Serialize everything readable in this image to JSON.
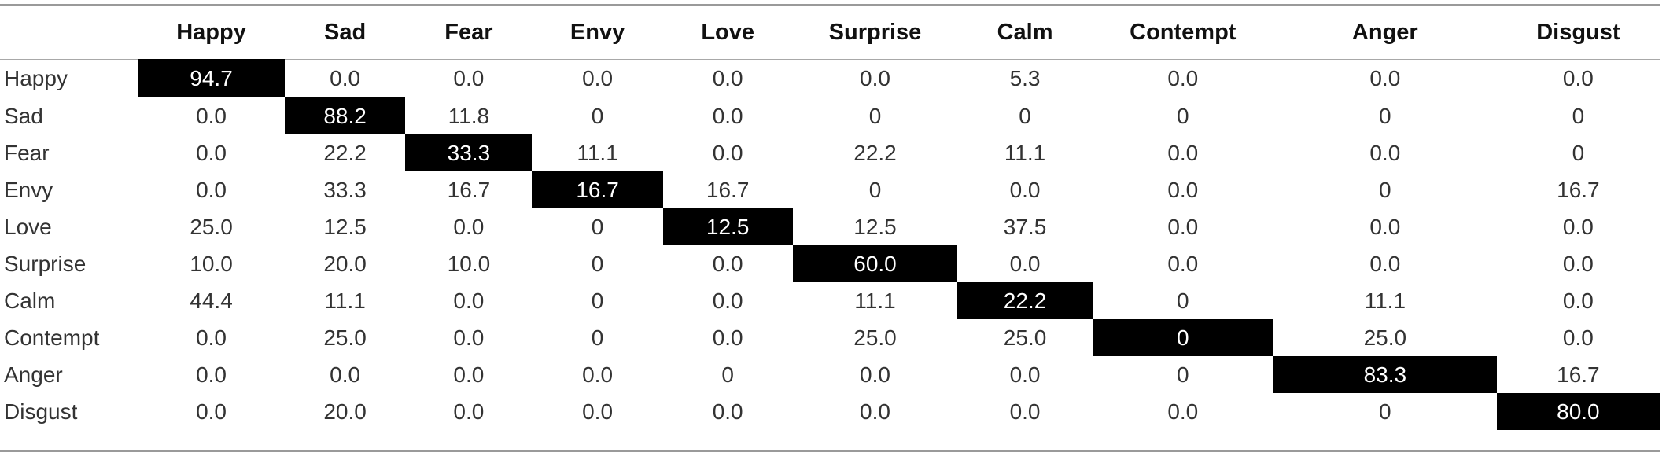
{
  "chart_data": {
    "type": "table",
    "title": "",
    "columns": [
      "Happy",
      "Sad",
      "Fear",
      "Envy",
      "Love",
      "Surprise",
      "Calm",
      "Contempt",
      "Anger",
      "Disgust"
    ],
    "rows": [
      {
        "label": "Happy",
        "values": [
          "94.7",
          "0.0",
          "0.0",
          "0.0",
          "0.0",
          "0.0",
          "5.3",
          "0.0",
          "0.0",
          "0.0"
        ]
      },
      {
        "label": "Sad",
        "values": [
          "0.0",
          "88.2",
          "11.8",
          "0",
          "0.0",
          "0",
          "0",
          "0",
          "0",
          "0"
        ]
      },
      {
        "label": "Fear",
        "values": [
          "0.0",
          "22.2",
          "33.3",
          "11.1",
          "0.0",
          "22.2",
          "11.1",
          "0.0",
          "0.0",
          "0"
        ]
      },
      {
        "label": "Envy",
        "values": [
          "0.0",
          "33.3",
          "16.7",
          "16.7",
          "16.7",
          "0",
          "0.0",
          "0.0",
          "0",
          "16.7"
        ]
      },
      {
        "label": "Love",
        "values": [
          "25.0",
          "12.5",
          "0.0",
          "0",
          "12.5",
          "12.5",
          "37.5",
          "0.0",
          "0.0",
          "0.0"
        ]
      },
      {
        "label": "Surprise",
        "values": [
          "10.0",
          "20.0",
          "10.0",
          "0",
          "0.0",
          "60.0",
          "0.0",
          "0.0",
          "0.0",
          "0.0"
        ]
      },
      {
        "label": "Calm",
        "values": [
          "44.4",
          "11.1",
          "0.0",
          "0",
          "0.0",
          "11.1",
          "22.2",
          "0",
          "11.1",
          "0.0"
        ]
      },
      {
        "label": "Contempt",
        "values": [
          "0.0",
          "25.0",
          "0.0",
          "0",
          "0.0",
          "25.0",
          "25.0",
          "0",
          "25.0",
          "0.0"
        ]
      },
      {
        "label": "Anger",
        "values": [
          "0.0",
          "0.0",
          "0.0",
          "0.0",
          "0",
          "0.0",
          "0.0",
          "0",
          "83.3",
          "16.7"
        ]
      },
      {
        "label": "Disgust",
        "values": [
          "0.0",
          "20.0",
          "0.0",
          "0.0",
          "0.0",
          "0.0",
          "0.0",
          "0.0",
          "0",
          "80.0"
        ]
      }
    ],
    "highlight": "diagonal",
    "highlight_color": "#000000",
    "highlight_text_color": "#ffffff"
  }
}
